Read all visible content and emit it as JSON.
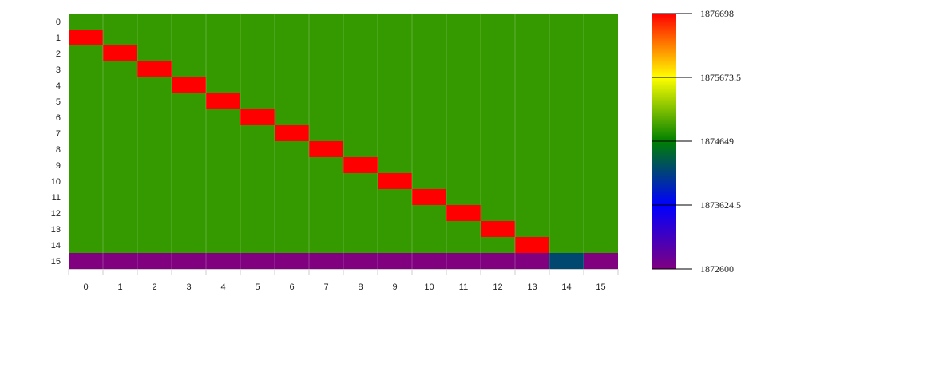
{
  "chart_data": {
    "type": "heatmap",
    "title": "",
    "xlabel": "",
    "ylabel": "",
    "x_categories": [
      "0",
      "1",
      "2",
      "3",
      "4",
      "5",
      "6",
      "7",
      "8",
      "9",
      "10",
      "11",
      "12",
      "13",
      "14",
      "15"
    ],
    "y_categories": [
      "0",
      "1",
      "2",
      "3",
      "4",
      "5",
      "6",
      "7",
      "8",
      "9",
      "10",
      "11",
      "12",
      "13",
      "14",
      "15"
    ],
    "values": [
      [
        1874860,
        1874860,
        1874860,
        1874860,
        1874860,
        1874860,
        1874860,
        1874860,
        1874860,
        1874860,
        1874860,
        1874860,
        1874860,
        1874860,
        1874860,
        1874860
      ],
      [
        1876698,
        1874860,
        1874860,
        1874860,
        1874860,
        1874860,
        1874860,
        1874860,
        1874860,
        1874860,
        1874860,
        1874860,
        1874860,
        1874860,
        1874860,
        1874860
      ],
      [
        1874860,
        1876698,
        1874860,
        1874860,
        1874860,
        1874860,
        1874860,
        1874860,
        1874860,
        1874860,
        1874860,
        1874860,
        1874860,
        1874860,
        1874860,
        1874860
      ],
      [
        1874860,
        1874860,
        1876698,
        1874860,
        1874860,
        1874860,
        1874860,
        1874860,
        1874860,
        1874860,
        1874860,
        1874860,
        1874860,
        1874860,
        1874860,
        1874860
      ],
      [
        1874860,
        1874860,
        1874860,
        1876698,
        1874860,
        1874860,
        1874860,
        1874860,
        1874860,
        1874860,
        1874860,
        1874860,
        1874860,
        1874860,
        1874860,
        1874860
      ],
      [
        1874860,
        1874860,
        1874860,
        1874860,
        1876698,
        1874860,
        1874860,
        1874860,
        1874860,
        1874860,
        1874860,
        1874860,
        1874860,
        1874860,
        1874860,
        1874860
      ],
      [
        1874860,
        1874860,
        1874860,
        1874860,
        1874860,
        1876698,
        1874860,
        1874860,
        1874860,
        1874860,
        1874860,
        1874860,
        1874860,
        1874860,
        1874860,
        1874860
      ],
      [
        1874860,
        1874860,
        1874860,
        1874860,
        1874860,
        1874860,
        1876698,
        1874860,
        1874860,
        1874860,
        1874860,
        1874860,
        1874860,
        1874860,
        1874860,
        1874860
      ],
      [
        1874860,
        1874860,
        1874860,
        1874860,
        1874860,
        1874860,
        1874860,
        1876698,
        1874860,
        1874860,
        1874860,
        1874860,
        1874860,
        1874860,
        1874860,
        1874860
      ],
      [
        1874860,
        1874860,
        1874860,
        1874860,
        1874860,
        1874860,
        1874860,
        1874860,
        1876698,
        1874860,
        1874860,
        1874860,
        1874860,
        1874860,
        1874860,
        1874860
      ],
      [
        1874860,
        1874860,
        1874860,
        1874860,
        1874860,
        1874860,
        1874860,
        1874860,
        1874860,
        1876698,
        1874860,
        1874860,
        1874860,
        1874860,
        1874860,
        1874860
      ],
      [
        1874860,
        1874860,
        1874860,
        1874860,
        1874860,
        1874860,
        1874860,
        1874860,
        1874860,
        1874860,
        1876698,
        1874860,
        1874860,
        1874860,
        1874860,
        1874860
      ],
      [
        1874860,
        1874860,
        1874860,
        1874860,
        1874860,
        1874860,
        1874860,
        1874860,
        1874860,
        1874860,
        1874860,
        1876698,
        1874860,
        1874860,
        1874860,
        1874860
      ],
      [
        1874860,
        1874860,
        1874860,
        1874860,
        1874860,
        1874860,
        1874860,
        1874860,
        1874860,
        1874860,
        1874860,
        1874860,
        1876698,
        1874860,
        1874860,
        1874860
      ],
      [
        1874860,
        1874860,
        1874860,
        1874860,
        1874860,
        1874860,
        1874860,
        1874860,
        1874860,
        1874860,
        1874860,
        1874860,
        1874860,
        1876698,
        1874860,
        1874860
      ],
      [
        1872600,
        1872600,
        1872600,
        1872600,
        1872600,
        1872600,
        1872600,
        1872600,
        1872600,
        1872600,
        1872600,
        1872600,
        1872600,
        1872600,
        1874200,
        1872600
      ]
    ],
    "colorbar": {
      "min": 1872600,
      "max": 1876698,
      "tick_labels": [
        "1876698",
        "1875673.5",
        "1874649",
        "1873624.5",
        "1872600"
      ],
      "gradient_stops": [
        {
          "offset": 0.0,
          "color": "#FF0000"
        },
        {
          "offset": 0.25,
          "color": "#FFFF00"
        },
        {
          "offset": 0.5,
          "color": "#008000"
        },
        {
          "offset": 0.75,
          "color": "#0000FF"
        },
        {
          "offset": 1.0,
          "color": "#800080"
        }
      ]
    },
    "grid": true,
    "legend": "right"
  }
}
